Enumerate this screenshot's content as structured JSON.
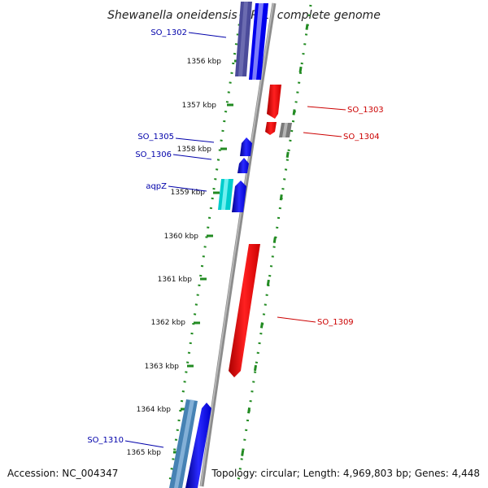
{
  "title": "Shewanella oneidensis MR-1, complete genome",
  "accession": "Accession: NC_004347",
  "summary": "Topology: circular; Length: 4,969,803 bp; Genes: 4,448",
  "ticks": [
    "1356 kbp",
    "1357 kbp",
    "1358 kbp",
    "1359 kbp",
    "1360 kbp",
    "1361 kbp",
    "1362 kbp",
    "1363 kbp",
    "1364 kbp",
    "1365 kbp"
  ],
  "gene_labels": {
    "so_1302": "SO_1302",
    "so_1303": "SO_1303",
    "so_1304": "SO_1304",
    "so_1305": "SO_1305",
    "so_1306": "SO_1306",
    "aqpz": "aqpZ",
    "so_1309": "SO_1309",
    "so_1310": "SO_1310"
  },
  "colors": {
    "backbone": "#888888",
    "dots": "#228B22",
    "forward_blue": "#0000ee",
    "dark_slate": "#4b4b9a",
    "cyan": "#00cccc",
    "steel": "#4682b4",
    "reverse_red": "#ee0000",
    "gray_gene": "#808080",
    "label_blue": "#0000aa",
    "label_red": "#cc0000"
  }
}
